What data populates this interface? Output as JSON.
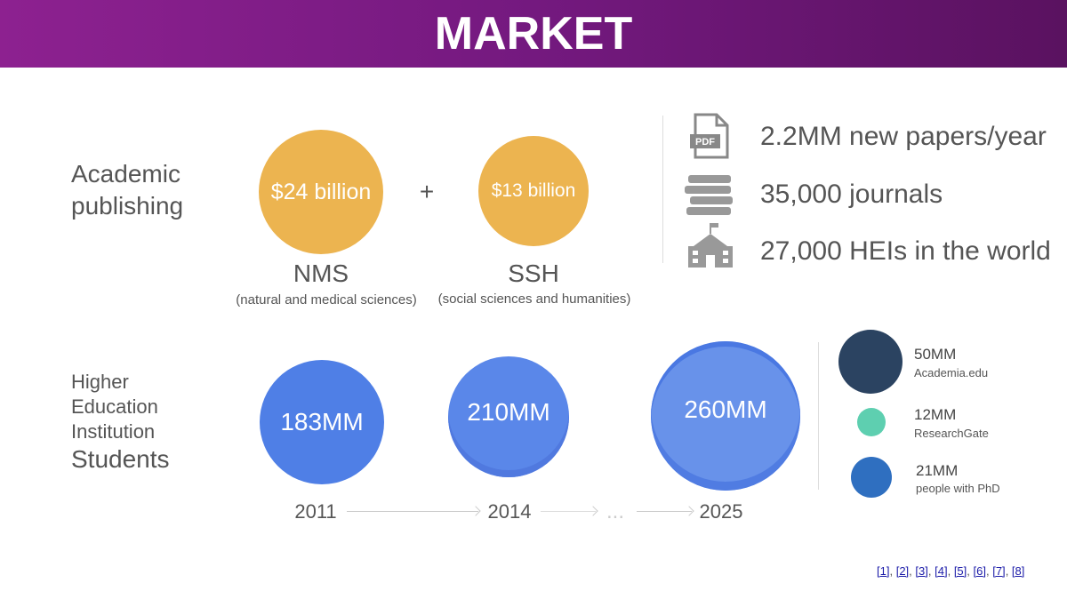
{
  "header": {
    "title": "MARKET"
  },
  "publishing": {
    "label": "Academic publishing",
    "plus": "+",
    "segments": [
      {
        "value": "$24 billion",
        "name": "NMS",
        "description": "(natural and medical sciences)"
      },
      {
        "value": "$13 billion",
        "name": "SSH",
        "description": "(social sciences and humanities)"
      }
    ]
  },
  "stats": {
    "pdf_icon_label": "PDF",
    "items": [
      "2.2MM new papers/year",
      "35,000 journals",
      "27,000 HEIs in the world"
    ]
  },
  "students": {
    "label_lines": [
      "Higher",
      "Education",
      "Institution",
      "Students"
    ],
    "years": [
      {
        "year": "2011",
        "value": "183MM"
      },
      {
        "year": "2014",
        "value": "210MM"
      },
      {
        "year": "2025",
        "value": "260MM"
      }
    ],
    "gap": "..."
  },
  "platforms": [
    {
      "value": "50MM",
      "name": "Academia.edu"
    },
    {
      "value": "12MM",
      "name": "ResearchGate"
    },
    {
      "value": "21MM",
      "name": "people with PhD"
    }
  ],
  "references": {
    "items": [
      "[1]",
      "[2]",
      "[3]",
      "[4]",
      "[5]",
      "[6]",
      "[7]",
      "[8]"
    ],
    "separator": ", "
  }
}
